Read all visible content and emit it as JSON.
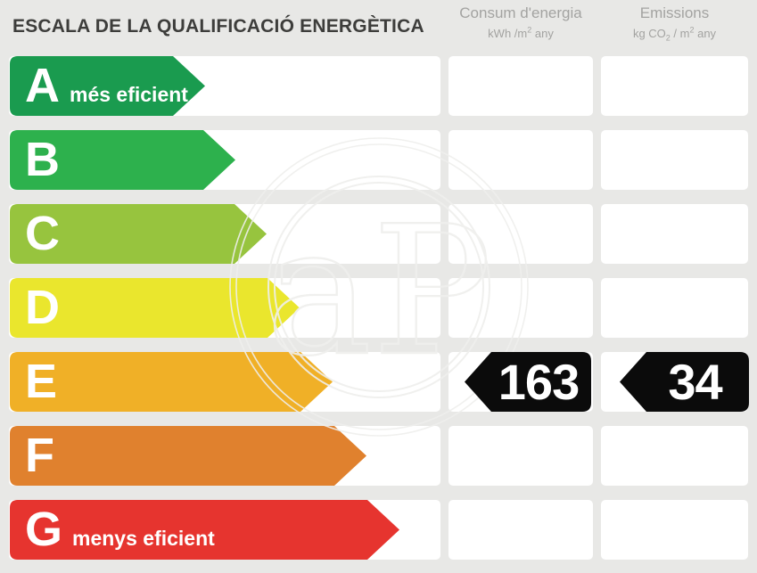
{
  "title": "ESCALA DE LA QUALIFICACIÓ ENERGÈTICA",
  "columns": {
    "consumption": {
      "title": "Consum d'energia",
      "unit": {
        "pre": "kWh /m",
        "sup": "2",
        "post": " any"
      }
    },
    "emissions": {
      "title": "Emissions",
      "unit": {
        "pre": "kg CO",
        "sub": "2",
        "mid": " / m",
        "sup": "2",
        "post": " any"
      }
    }
  },
  "chart_data": {
    "type": "bar",
    "title": "ESCALA DE LA QUALIFICACIÓ ENERGÈTICA",
    "categories": [
      "A",
      "B",
      "C",
      "D",
      "E",
      "F",
      "G"
    ],
    "category_notes": [
      "més eficient",
      "",
      "",
      "",
      "",
      "",
      "menys eficient"
    ],
    "bar_colors": [
      "#1a9b4f",
      "#2db14d",
      "#97c43e",
      "#eae62d",
      "#f0b027",
      "#e0812e",
      "#e6342f"
    ],
    "column_headers": [
      {
        "title": "Consum d'energia",
        "unit": "kWh /m2 any"
      },
      {
        "title": "Emissions",
        "unit": "kg CO2 / m2 any"
      }
    ],
    "highlight": {
      "category": "E",
      "consumption_kwh_m2_any": 163,
      "emissions_kg_co2_m2_any": 34
    }
  },
  "rating": {
    "category": "E",
    "consumption_value": "163",
    "emissions_value": "34",
    "marker_color": "#0b0b0b",
    "value_text_color": "#ffffff"
  },
  "watermark": {
    "text": "aP"
  }
}
